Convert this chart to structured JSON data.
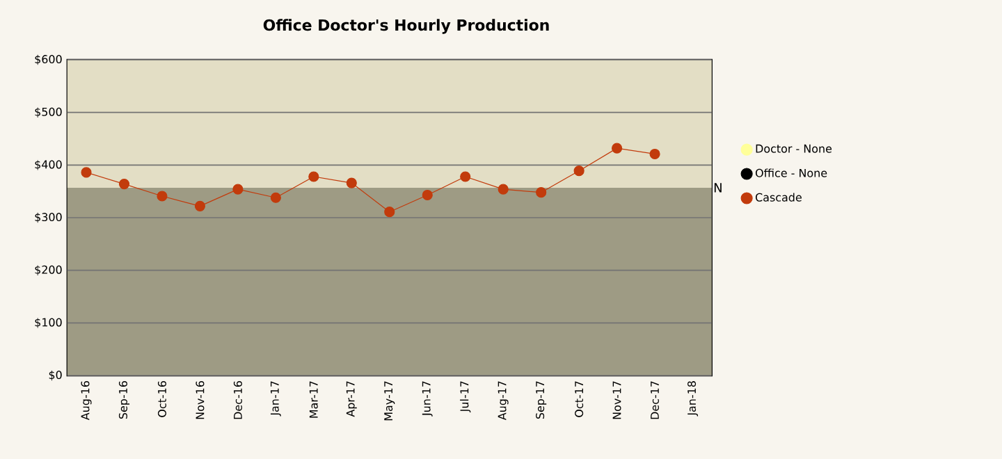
{
  "chart_data": {
    "type": "line",
    "title": "Office Doctor's Hourly Production",
    "categories": [
      "Aug-16",
      "Sep-16",
      "Oct-16",
      "Nov-16",
      "Dec-16",
      "Jan-17",
      "Mar-17",
      "Apr-17",
      "May-17",
      "Jun-17",
      "Jul-17",
      "Aug-17",
      "Sep-17",
      "Oct-17",
      "Nov-17",
      "Dec-17",
      "Jan-18"
    ],
    "series": [
      {
        "name": "Doctor - None",
        "color": "#ffff99",
        "values": [
          null,
          null,
          null,
          null,
          null,
          null,
          null,
          null,
          null,
          null,
          null,
          null,
          null,
          null,
          null,
          null,
          null
        ]
      },
      {
        "name": "Office - None",
        "color": "#000000",
        "values": [
          null,
          null,
          null,
          null,
          null,
          null,
          null,
          null,
          null,
          null,
          null,
          null,
          null,
          null,
          null,
          null,
          null
        ]
      },
      {
        "name": "Cascade",
        "color": "#c23b0c",
        "values": [
          386,
          364,
          341,
          322,
          354,
          338,
          378,
          366,
          311,
          343,
          378,
          354,
          348,
          389,
          432,
          421,
          null
        ]
      }
    ],
    "ylim": [
      0,
      600
    ],
    "yticks": [
      {
        "value": 0,
        "label": "$0"
      },
      {
        "value": 100,
        "label": "$100"
      },
      {
        "value": 200,
        "label": "$200"
      },
      {
        "value": 300,
        "label": "$300"
      },
      {
        "value": 400,
        "label": "$400"
      },
      {
        "value": 500,
        "label": "$500"
      },
      {
        "value": 600,
        "label": "$600"
      }
    ],
    "bands": [
      {
        "axis": "y",
        "from": 0,
        "to": 357,
        "label": "N",
        "color": "#9e9b84"
      },
      {
        "axis": "y",
        "from": 357,
        "to": 600,
        "color": "#e3dec5"
      }
    ],
    "grid": "y",
    "legend": "right",
    "marker": "circle",
    "line_style": "solid"
  }
}
